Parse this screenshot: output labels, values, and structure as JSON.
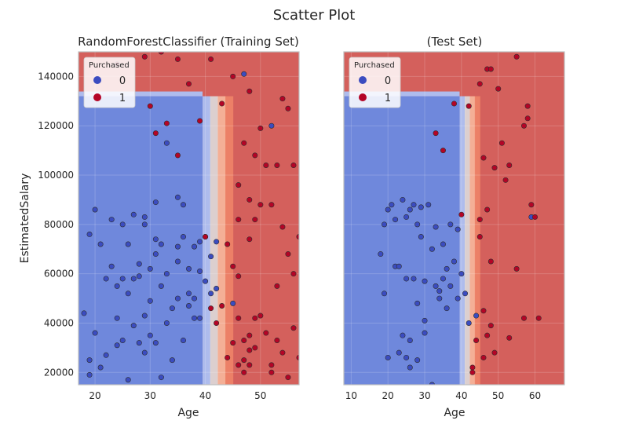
{
  "figure": {
    "suptitle": "Scatter Plot"
  },
  "colors": {
    "class0": "#3b4cc0",
    "class1": "#b40426",
    "region0": "#6f88dc",
    "region1": "#d4605c",
    "frame": "#bfbfbf"
  },
  "chart_data": [
    {
      "type": "scatter",
      "title": "RandomForestClassifier (Training Set)",
      "xlabel": "Age",
      "ylabel": "EstimatedSalary",
      "xlim": [
        17,
        57
      ],
      "ylim": [
        15000,
        150000
      ],
      "xticks": [
        20,
        30,
        40,
        50
      ],
      "yticks": [
        20000,
        40000,
        60000,
        80000,
        100000,
        120000,
        140000
      ],
      "legend": {
        "title": "Purchased",
        "position": "top-left",
        "entries": [
          "0",
          "1"
        ]
      },
      "background": "filled decision regions (coolwarm): class 0 (blue) left of Age ~40 below ~132000 salary; class 1 (red) elsewhere",
      "series": [
        {
          "name": "0",
          "points": [
            [
              19,
              19000
            ],
            [
              19,
              76000
            ],
            [
              20,
              86000
            ],
            [
              21,
              72000
            ],
            [
              22,
              58000
            ],
            [
              23,
              82000
            ],
            [
              24,
              55000
            ],
            [
              25,
              58000
            ],
            [
              26,
              52000
            ],
            [
              27,
              58000
            ],
            [
              27,
              84000
            ],
            [
              28,
              59000
            ],
            [
              29,
              43000
            ],
            [
              29,
              80000
            ],
            [
              30,
              49000
            ],
            [
              31,
              68000
            ],
            [
              31,
              74000
            ],
            [
              32,
              18000
            ],
            [
              32,
              72000
            ],
            [
              33,
              60000
            ],
            [
              34,
              25000
            ],
            [
              35,
              65000
            ],
            [
              35,
              71000
            ],
            [
              36,
              33000
            ],
            [
              37,
              52000
            ],
            [
              37,
              62000
            ],
            [
              38,
              50000
            ],
            [
              38,
              71000
            ],
            [
              39,
              42000
            ],
            [
              39,
              61000
            ],
            [
              40,
              57000
            ],
            [
              40,
              75000
            ],
            [
              41,
              52000
            ],
            [
              42,
              54000
            ],
            [
              42,
              73000
            ],
            [
              35,
              91000
            ],
            [
              36,
              88000
            ],
            [
              33,
              113000
            ],
            [
              20,
              36000
            ],
            [
              22,
              27000
            ],
            [
              24,
              31000
            ],
            [
              26,
              17000
            ],
            [
              28,
              32000
            ],
            [
              30,
              35000
            ],
            [
              35,
              50000
            ],
            [
              37,
              47000
            ],
            [
              25,
              80000
            ],
            [
              29,
              83000
            ],
            [
              31,
              89000
            ],
            [
              39,
              73000
            ],
            [
              26,
              72000
            ],
            [
              30,
              62000
            ],
            [
              34,
              46000
            ],
            [
              38,
              42000
            ],
            [
              27,
              39000
            ],
            [
              23,
              63000
            ],
            [
              25,
              33000
            ],
            [
              32,
              55000
            ],
            [
              36,
              75000
            ],
            [
              41,
              67000
            ],
            [
              19,
              25000
            ],
            [
              21,
              22000
            ],
            [
              18,
              44000
            ],
            [
              24,
              42000
            ],
            [
              29,
              28000
            ],
            [
              33,
              40000
            ],
            [
              28,
              64000
            ],
            [
              31,
              32000
            ],
            [
              45,
              48000
            ],
            [
              52,
              120000
            ],
            [
              47,
              141000
            ]
          ]
        },
        {
          "name": "1",
          "points": [
            [
              24,
              145000
            ],
            [
              29,
              148000
            ],
            [
              30,
              128000
            ],
            [
              31,
              117000
            ],
            [
              32,
              150000
            ],
            [
              35,
              108000
            ],
            [
              35,
              147000
            ],
            [
              37,
              137000
            ],
            [
              41,
              147000
            ],
            [
              45,
              140000
            ],
            [
              46,
              96000
            ],
            [
              47,
              113000
            ],
            [
              48,
              90000
            ],
            [
              49,
              82000
            ],
            [
              49,
              108000
            ],
            [
              50,
              119000
            ],
            [
              51,
              104000
            ],
            [
              52,
              88000
            ],
            [
              53,
              104000
            ],
            [
              54,
              131000
            ],
            [
              55,
              127000
            ],
            [
              56,
              104000
            ],
            [
              57,
              75000
            ],
            [
              47,
              20000
            ],
            [
              48,
              23000
            ],
            [
              49,
              30000
            ],
            [
              50,
              43000
            ],
            [
              51,
              36000
            ],
            [
              52,
              23000
            ],
            [
              53,
              33000
            ],
            [
              54,
              28000
            ],
            [
              55,
              18000
            ],
            [
              56,
              38000
            ],
            [
              57,
              26000
            ],
            [
              46,
              42000
            ],
            [
              47,
              33000
            ],
            [
              48,
              35000
            ],
            [
              49,
              42000
            ],
            [
              40,
              75000
            ],
            [
              44,
              72000
            ],
            [
              46,
              82000
            ],
            [
              45,
              63000
            ],
            [
              41,
              46000
            ],
            [
              42,
              40000
            ],
            [
              43,
              47000
            ],
            [
              46,
              23000
            ],
            [
              47,
              25000
            ],
            [
              48,
              29000
            ],
            [
              44,
              26000
            ],
            [
              45,
              32000
            ],
            [
              46,
              59000
            ],
            [
              48,
              74000
            ],
            [
              53,
              55000
            ],
            [
              54,
              79000
            ],
            [
              55,
              68000
            ],
            [
              56,
              60000
            ],
            [
              52,
              20000
            ],
            [
              50,
              88000
            ],
            [
              48,
              134000
            ],
            [
              43,
              129000
            ],
            [
              33,
              121000
            ],
            [
              39,
              122000
            ]
          ]
        }
      ]
    },
    {
      "type": "scatter",
      "title": "(Test Set)",
      "xlabel": "Age",
      "ylabel": "",
      "xlim": [
        8,
        68
      ],
      "ylim": [
        15000,
        150000
      ],
      "xticks": [
        10,
        20,
        30,
        40,
        50,
        60
      ],
      "yticks": [],
      "legend": {
        "title": "Purchased",
        "position": "top-left",
        "entries": [
          "0",
          "1"
        ]
      },
      "background": "filled decision regions (coolwarm): class 0 (blue) left of Age ~40 below ~132000 salary; class 1 (red) elsewhere",
      "series": [
        {
          "name": "0",
          "points": [
            [
              18,
              68000
            ],
            [
              19,
              80000
            ],
            [
              19,
              52000
            ],
            [
              20,
              86000
            ],
            [
              21,
              88000
            ],
            [
              22,
              82000
            ],
            [
              22,
              63000
            ],
            [
              23,
              28000
            ],
            [
              23,
              63000
            ],
            [
              24,
              90000
            ],
            [
              25,
              83000
            ],
            [
              25,
              58000
            ],
            [
              26,
              86000
            ],
            [
              26,
              33000
            ],
            [
              27,
              88000
            ],
            [
              27,
              58000
            ],
            [
              28,
              80000
            ],
            [
              28,
              48000
            ],
            [
              29,
              87000
            ],
            [
              29,
              75000
            ],
            [
              30,
              57000
            ],
            [
              30,
              41000
            ],
            [
              31,
              88000
            ],
            [
              32,
              70000
            ],
            [
              32,
              15000
            ],
            [
              33,
              55000
            ],
            [
              33,
              79000
            ],
            [
              34,
              50000
            ],
            [
              35,
              58000
            ],
            [
              35,
              72000
            ],
            [
              36,
              62000
            ],
            [
              36,
              46000
            ],
            [
              37,
              80000
            ],
            [
              37,
              55000
            ],
            [
              38,
              65000
            ],
            [
              39,
              50000
            ],
            [
              39,
              78000
            ],
            [
              40,
              60000
            ],
            [
              41,
              52000
            ],
            [
              42,
              40000
            ],
            [
              44,
              43000
            ],
            [
              26,
              22000
            ],
            [
              25,
              26000
            ],
            [
              28,
              25000
            ],
            [
              30,
              36000
            ],
            [
              20,
              26000
            ],
            [
              24,
              35000
            ],
            [
              34,
              53000
            ],
            [
              59,
              83000
            ]
          ]
        },
        {
          "name": "1",
          "points": [
            [
              33,
              117000
            ],
            [
              35,
              110000
            ],
            [
              38,
              129000
            ],
            [
              42,
              128000
            ],
            [
              45,
              137000
            ],
            [
              47,
              143000
            ],
            [
              48,
              143000
            ],
            [
              50,
              135000
            ],
            [
              55,
              148000
            ],
            [
              57,
              120000
            ],
            [
              58,
              128000
            ],
            [
              58,
              123000
            ],
            [
              59,
              88000
            ],
            [
              60,
              83000
            ],
            [
              61,
              42000
            ],
            [
              46,
              107000
            ],
            [
              49,
              103000
            ],
            [
              51,
              113000
            ],
            [
              52,
              98000
            ],
            [
              47,
              86000
            ],
            [
              45,
              75000
            ],
            [
              48,
              65000
            ],
            [
              55,
              62000
            ],
            [
              46,
              45000
            ],
            [
              47,
              35000
            ],
            [
              48,
              39000
            ],
            [
              49,
              28000
            ],
            [
              53,
              34000
            ],
            [
              57,
              42000
            ],
            [
              44,
              33000
            ],
            [
              43,
              22000
            ],
            [
              46,
              26000
            ],
            [
              53,
              104000
            ],
            [
              40,
              84000
            ],
            [
              45,
              82000
            ],
            [
              43,
              20000
            ]
          ]
        }
      ]
    }
  ]
}
